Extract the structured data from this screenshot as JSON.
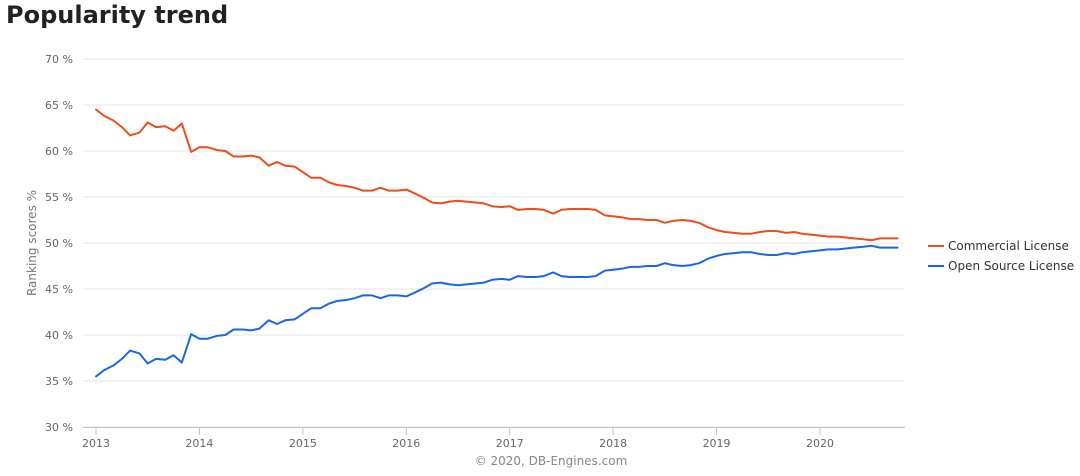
{
  "page": {
    "title": "Popularity trend"
  },
  "credit": "© 2020, DB-Engines.com",
  "chart_data": {
    "type": "line",
    "title": "",
    "xlabel": "",
    "ylabel": "Ranking scores %",
    "xlim": [
      2013.0,
      2020.85
    ],
    "ylim": [
      30,
      70
    ],
    "x_ticks": [
      2013,
      2014,
      2015,
      2016,
      2017,
      2018,
      2019,
      2020
    ],
    "x_tick_labels": [
      "2013",
      "2014",
      "2015",
      "2016",
      "2017",
      "2018",
      "2019",
      "2020"
    ],
    "y_ticks": [
      30,
      35,
      40,
      45,
      50,
      55,
      60,
      65,
      70
    ],
    "y_tick_labels": [
      "30 %",
      "35 %",
      "40 %",
      "45 %",
      "50 %",
      "55 %",
      "60 %",
      "65 %",
      "70 %"
    ],
    "grid": true,
    "legend_position": "right",
    "series": [
      {
        "name": "Commercial License",
        "color": "#ee4d1a",
        "points": [
          [
            2013.0,
            64.5
          ],
          [
            2013.08,
            63.8
          ],
          [
            2013.17,
            63.3
          ],
          [
            2013.25,
            62.6
          ],
          [
            2013.33,
            61.7
          ],
          [
            2013.42,
            62.0
          ],
          [
            2013.5,
            63.1
          ],
          [
            2013.58,
            62.6
          ],
          [
            2013.67,
            62.7
          ],
          [
            2013.75,
            62.2
          ],
          [
            2013.83,
            63.0
          ],
          [
            2013.92,
            59.9
          ],
          [
            2014.0,
            60.4
          ],
          [
            2014.08,
            60.4
          ],
          [
            2014.17,
            60.1
          ],
          [
            2014.25,
            60.0
          ],
          [
            2014.33,
            59.4
          ],
          [
            2014.42,
            59.4
          ],
          [
            2014.5,
            59.5
          ],
          [
            2014.58,
            59.3
          ],
          [
            2014.67,
            58.4
          ],
          [
            2014.75,
            58.8
          ],
          [
            2014.83,
            58.4
          ],
          [
            2014.92,
            58.3
          ],
          [
            2015.0,
            57.7
          ],
          [
            2015.08,
            57.1
          ],
          [
            2015.17,
            57.1
          ],
          [
            2015.25,
            56.6
          ],
          [
            2015.33,
            56.3
          ],
          [
            2015.42,
            56.2
          ],
          [
            2015.5,
            56.0
          ],
          [
            2015.58,
            55.7
          ],
          [
            2015.67,
            55.7
          ],
          [
            2015.75,
            56.0
          ],
          [
            2015.83,
            55.7
          ],
          [
            2015.92,
            55.7
          ],
          [
            2016.0,
            55.8
          ],
          [
            2016.08,
            55.4
          ],
          [
            2016.17,
            54.9
          ],
          [
            2016.25,
            54.4
          ],
          [
            2016.33,
            54.3
          ],
          [
            2016.42,
            54.5
          ],
          [
            2016.5,
            54.6
          ],
          [
            2016.58,
            54.5
          ],
          [
            2016.67,
            54.4
          ],
          [
            2016.75,
            54.3
          ],
          [
            2016.83,
            54.0
          ],
          [
            2016.92,
            53.9
          ],
          [
            2017.0,
            54.0
          ],
          [
            2017.08,
            53.6
          ],
          [
            2017.17,
            53.7
          ],
          [
            2017.25,
            53.7
          ],
          [
            2017.33,
            53.6
          ],
          [
            2017.42,
            53.2
          ],
          [
            2017.5,
            53.6
          ],
          [
            2017.58,
            53.7
          ],
          [
            2017.67,
            53.7
          ],
          [
            2017.75,
            53.7
          ],
          [
            2017.83,
            53.6
          ],
          [
            2017.92,
            53.0
          ],
          [
            2018.0,
            52.9
          ],
          [
            2018.08,
            52.8
          ],
          [
            2018.17,
            52.6
          ],
          [
            2018.25,
            52.6
          ],
          [
            2018.33,
            52.5
          ],
          [
            2018.42,
            52.5
          ],
          [
            2018.5,
            52.2
          ],
          [
            2018.58,
            52.4
          ],
          [
            2018.67,
            52.5
          ],
          [
            2018.75,
            52.4
          ],
          [
            2018.83,
            52.2
          ],
          [
            2018.92,
            51.7
          ],
          [
            2019.0,
            51.4
          ],
          [
            2019.08,
            51.2
          ],
          [
            2019.17,
            51.1
          ],
          [
            2019.25,
            51.0
          ],
          [
            2019.33,
            51.0
          ],
          [
            2019.42,
            51.2
          ],
          [
            2019.5,
            51.3
          ],
          [
            2019.58,
            51.3
          ],
          [
            2019.67,
            51.1
          ],
          [
            2019.75,
            51.2
          ],
          [
            2019.83,
            51.0
          ],
          [
            2019.92,
            50.9
          ],
          [
            2020.0,
            50.8
          ],
          [
            2020.08,
            50.7
          ],
          [
            2020.17,
            50.7
          ],
          [
            2020.25,
            50.6
          ],
          [
            2020.33,
            50.5
          ],
          [
            2020.42,
            50.4
          ],
          [
            2020.5,
            50.3
          ],
          [
            2020.58,
            50.5
          ],
          [
            2020.67,
            50.5
          ],
          [
            2020.75,
            50.5
          ]
        ]
      },
      {
        "name": "Open Source License",
        "color": "#1a66e8",
        "points": [
          [
            2013.0,
            35.5
          ],
          [
            2013.08,
            36.2
          ],
          [
            2013.17,
            36.7
          ],
          [
            2013.25,
            37.4
          ],
          [
            2013.33,
            38.3
          ],
          [
            2013.42,
            38.0
          ],
          [
            2013.5,
            36.9
          ],
          [
            2013.58,
            37.4
          ],
          [
            2013.67,
            37.3
          ],
          [
            2013.75,
            37.8
          ],
          [
            2013.83,
            37.0
          ],
          [
            2013.92,
            40.1
          ],
          [
            2014.0,
            39.6
          ],
          [
            2014.08,
            39.6
          ],
          [
            2014.17,
            39.9
          ],
          [
            2014.25,
            40.0
          ],
          [
            2014.33,
            40.6
          ],
          [
            2014.42,
            40.6
          ],
          [
            2014.5,
            40.5
          ],
          [
            2014.58,
            40.7
          ],
          [
            2014.67,
            41.6
          ],
          [
            2014.75,
            41.2
          ],
          [
            2014.83,
            41.6
          ],
          [
            2014.92,
            41.7
          ],
          [
            2015.0,
            42.3
          ],
          [
            2015.08,
            42.9
          ],
          [
            2015.17,
            42.9
          ],
          [
            2015.25,
            43.4
          ],
          [
            2015.33,
            43.7
          ],
          [
            2015.42,
            43.8
          ],
          [
            2015.5,
            44.0
          ],
          [
            2015.58,
            44.3
          ],
          [
            2015.67,
            44.3
          ],
          [
            2015.75,
            44.0
          ],
          [
            2015.83,
            44.3
          ],
          [
            2015.92,
            44.3
          ],
          [
            2016.0,
            44.2
          ],
          [
            2016.08,
            44.6
          ],
          [
            2016.17,
            45.1
          ],
          [
            2016.25,
            45.6
          ],
          [
            2016.33,
            45.7
          ],
          [
            2016.42,
            45.5
          ],
          [
            2016.5,
            45.4
          ],
          [
            2016.58,
            45.5
          ],
          [
            2016.67,
            45.6
          ],
          [
            2016.75,
            45.7
          ],
          [
            2016.83,
            46.0
          ],
          [
            2016.92,
            46.1
          ],
          [
            2017.0,
            46.0
          ],
          [
            2017.08,
            46.4
          ],
          [
            2017.17,
            46.3
          ],
          [
            2017.25,
            46.3
          ],
          [
            2017.33,
            46.4
          ],
          [
            2017.42,
            46.8
          ],
          [
            2017.5,
            46.4
          ],
          [
            2017.58,
            46.3
          ],
          [
            2017.67,
            46.3
          ],
          [
            2017.75,
            46.3
          ],
          [
            2017.83,
            46.4
          ],
          [
            2017.92,
            47.0
          ],
          [
            2018.0,
            47.1
          ],
          [
            2018.08,
            47.2
          ],
          [
            2018.17,
            47.4
          ],
          [
            2018.25,
            47.4
          ],
          [
            2018.33,
            47.5
          ],
          [
            2018.42,
            47.5
          ],
          [
            2018.5,
            47.8
          ],
          [
            2018.58,
            47.6
          ],
          [
            2018.67,
            47.5
          ],
          [
            2018.75,
            47.6
          ],
          [
            2018.83,
            47.8
          ],
          [
            2018.92,
            48.3
          ],
          [
            2019.0,
            48.6
          ],
          [
            2019.08,
            48.8
          ],
          [
            2019.17,
            48.9
          ],
          [
            2019.25,
            49.0
          ],
          [
            2019.33,
            49.0
          ],
          [
            2019.42,
            48.8
          ],
          [
            2019.5,
            48.7
          ],
          [
            2019.58,
            48.7
          ],
          [
            2019.67,
            48.9
          ],
          [
            2019.75,
            48.8
          ],
          [
            2019.83,
            49.0
          ],
          [
            2019.92,
            49.1
          ],
          [
            2020.0,
            49.2
          ],
          [
            2020.08,
            49.3
          ],
          [
            2020.17,
            49.3
          ],
          [
            2020.25,
            49.4
          ],
          [
            2020.33,
            49.5
          ],
          [
            2020.42,
            49.6
          ],
          [
            2020.5,
            49.7
          ],
          [
            2020.58,
            49.5
          ],
          [
            2020.67,
            49.5
          ],
          [
            2020.75,
            49.5
          ]
        ]
      }
    ]
  }
}
